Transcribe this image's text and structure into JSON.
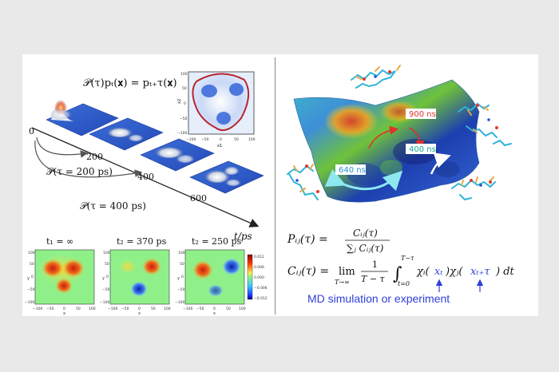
{
  "operator_equation": "𝒫(τ)pₜ(𝐱) = pₜ₊τ(𝐱)",
  "timeline": {
    "ticks": [
      "0",
      "200",
      "400",
      "600"
    ],
    "axis_label": "t/ps",
    "arc_short": "𝒫(τ = 200 ps)",
    "arc_long": "𝒫(τ = 400 ps)"
  },
  "inset": {
    "xlabel": "x1",
    "ylabel": "x2",
    "xticks": [
      "−100",
      "−50",
      "0",
      "50",
      "100"
    ],
    "yticks": [
      "100",
      "50",
      "0",
      "−50",
      "−100"
    ]
  },
  "heatmaps": [
    {
      "title": "t₁ = ∞"
    },
    {
      "title": "t₂ = 370 ps"
    },
    {
      "title": "t₂ = 250 ps"
    }
  ],
  "heatmap_axes": {
    "xlabel": "x",
    "ylabel": "y",
    "xticks": [
      "−100",
      "−50",
      "0",
      "50",
      "100"
    ],
    "yticks": [
      "100",
      "50",
      "0",
      "−50",
      "−100"
    ]
  },
  "colorbar_ticks": [
    "0.012",
    "0.006",
    "0.000",
    "−0.006",
    "−0.012"
  ],
  "landscape": {
    "labels": [
      "900 ns",
      "400 ns",
      "640 ns"
    ],
    "label_colors": [
      "#e0302c",
      "#14a89a",
      "#2f8fd8"
    ]
  },
  "equations": {
    "p_lhs": "Pᵢⱼ(τ) =",
    "p_num": "Cᵢⱼ(τ)",
    "p_den": "∑ⱼ Cᵢⱼ(τ)",
    "c_lhs": "Cᵢⱼ(τ) =",
    "c_lim": "lim",
    "c_lim_sub": "T→∞",
    "c_frac_num": "1",
    "c_frac_den": "T − τ",
    "c_int_upper": "T−τ",
    "c_int_lower": "t=0",
    "c_chi_i": "χᵢ(",
    "c_xt": "xₜ",
    "c_close_chi_j": ")χⱼ(",
    "c_xtt": "xₜ₊τ",
    "c_tail": ") dt"
  },
  "footnote": "MD simulation or experiment"
}
